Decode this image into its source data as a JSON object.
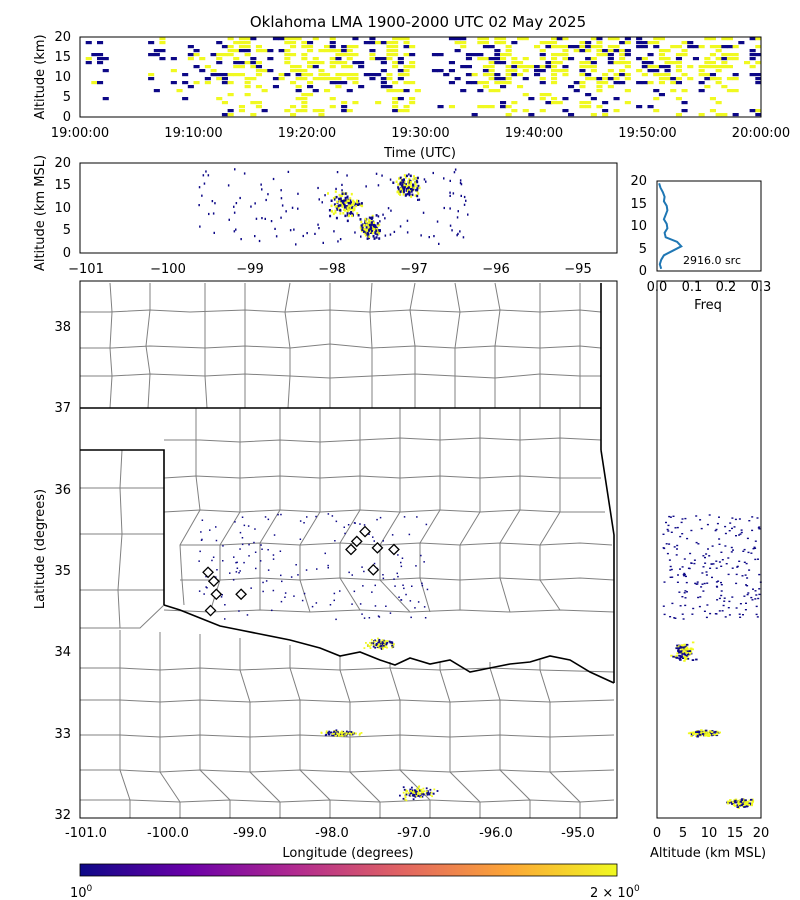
{
  "chart_data": [
    {
      "name": "time-altitude",
      "type": "heatmap",
      "title": "Oklahoma LMA 1900-2000 UTC 02 May 2025",
      "xlabel": "Time (UTC)",
      "ylabel": "Altitude (km)",
      "xticks": [
        "19:00:00",
        "19:10:00",
        "19:20:00",
        "19:30:00",
        "19:40:00",
        "19:50:00",
        "20:00:00"
      ],
      "yticks": [
        "0",
        "5",
        "10",
        "15",
        "20"
      ],
      "xlim_minutes": [
        0,
        60
      ],
      "ylim": [
        0,
        20
      ],
      "active_windows_minutes": [
        [
          0.2,
          2.0
        ],
        [
          6.0,
          7.0
        ],
        [
          8.0,
          21.0
        ],
        [
          21.5,
          29.5
        ],
        [
          31.0,
          60.0
        ]
      ],
      "dense_windows_minutes": [
        [
          13.0,
          16.0
        ],
        [
          18.0,
          24.0
        ],
        [
          27.0,
          29.0
        ],
        [
          35.0,
          39.0
        ],
        [
          40.5,
          42.5
        ],
        [
          44.0,
          48.0
        ],
        [
          50.0,
          53.0
        ],
        [
          54.5,
          57.5
        ]
      ],
      "colors": [
        "#0d0887",
        "#f0f921"
      ]
    },
    {
      "name": "longitude-altitude",
      "type": "scatter",
      "xlabel": "",
      "ylabel": "Altitude (km MSL)",
      "xticks": [
        "−101",
        "−100",
        "−99",
        "−98",
        "−97",
        "−96",
        "−95"
      ],
      "yticks": [
        "0",
        "5",
        "10",
        "15",
        "20"
      ],
      "xlim": [
        -101.0,
        -94.5
      ],
      "ylim": [
        0,
        20
      ],
      "dense_clusters": [
        {
          "lon": -97.05,
          "alt": 15.0,
          "spread_lon": 0.2,
          "spread_alt": 3.0
        },
        {
          "lon": -97.5,
          "alt": 6.0,
          "spread_lon": 0.18,
          "spread_alt": 3.0
        },
        {
          "lon": -97.8,
          "alt": 11.0,
          "spread_lon": 0.25,
          "spread_alt": 4.0
        }
      ]
    },
    {
      "name": "altitude-frequency",
      "type": "line",
      "xlabel": "Freq",
      "ylabel": "",
      "xticks": [
        "0.0",
        "0.1",
        "0.2",
        "0.3"
      ],
      "yticks": [
        "0",
        "5",
        "10",
        "15",
        "20"
      ],
      "xlim": [
        0,
        0.3
      ],
      "ylim": [
        0,
        20
      ],
      "annotation": "2916.0 src",
      "points": [
        [
          0.012,
          0.5
        ],
        [
          0.008,
          1.5
        ],
        [
          0.012,
          2.5
        ],
        [
          0.02,
          3.5
        ],
        [
          0.045,
          4.5
        ],
        [
          0.07,
          5.5
        ],
        [
          0.058,
          6.5
        ],
        [
          0.025,
          7.5
        ],
        [
          0.022,
          8.5
        ],
        [
          0.03,
          9.5
        ],
        [
          0.028,
          10.5
        ],
        [
          0.02,
          11.5
        ],
        [
          0.025,
          12.5
        ],
        [
          0.03,
          13.5
        ],
        [
          0.028,
          14.5
        ],
        [
          0.02,
          15.5
        ],
        [
          0.022,
          16.5
        ],
        [
          0.017,
          17.5
        ],
        [
          0.01,
          18.5
        ],
        [
          0.006,
          19.5
        ]
      ],
      "color": "#1f77b4"
    },
    {
      "name": "plan-view",
      "type": "scatter",
      "xlabel": "Longitude (degrees)",
      "ylabel": "Latitude (degrees)",
      "xticks": [
        "-101.0",
        "-100.0",
        "-99.0",
        "-98.0",
        "-97.0",
        "-96.0",
        "-95.0"
      ],
      "yticks": [
        "32",
        "33",
        "34",
        "35",
        "36",
        "37",
        "38"
      ],
      "xlim": [
        -101.0,
        -94.5
      ],
      "ylim": [
        31.95,
        38.55
      ],
      "stations": [
        [
          -97.55,
          35.47
        ],
        [
          -97.65,
          35.35
        ],
        [
          -97.72,
          35.25
        ],
        [
          -97.4,
          35.27
        ],
        [
          -97.2,
          35.25
        ],
        [
          -97.45,
          35.0
        ],
        [
          -99.45,
          34.97
        ],
        [
          -99.38,
          34.86
        ],
        [
          -99.35,
          34.7
        ],
        [
          -99.05,
          34.7
        ],
        [
          -99.42,
          34.5
        ]
      ],
      "dense_clusters": [
        {
          "lon": -97.35,
          "lat": 34.1,
          "spread_lon": 0.25,
          "spread_lat": 0.08
        },
        {
          "lon": -96.95,
          "lat": 32.27,
          "spread_lon": 0.3,
          "spread_lat": 0.1
        },
        {
          "lon": -97.85,
          "lat": 33.0,
          "spread_lon": 0.3,
          "spread_lat": 0.05
        }
      ]
    },
    {
      "name": "altitude-latitude",
      "type": "scatter",
      "xlabel": "Altitude (km MSL)",
      "ylabel": "",
      "xticks": [
        "0",
        "5",
        "10",
        "15",
        "20"
      ],
      "xlim": [
        0,
        20
      ],
      "ylim": [
        31.95,
        38.55
      ],
      "dense_clusters": [
        {
          "alt": 5.0,
          "lat": 34.0,
          "spread_alt": 3.0,
          "spread_lat": 0.15
        },
        {
          "alt": 16.0,
          "lat": 32.15,
          "spread_alt": 4.0,
          "spread_lat": 0.08
        },
        {
          "alt": 9.0,
          "lat": 33.0,
          "spread_alt": 4.0,
          "spread_lat": 0.05
        }
      ]
    }
  ],
  "colorbar": {
    "min_label_base": "10",
    "min_label_exp": "0",
    "max_label_base": "2 × 10",
    "max_label_exp": "0",
    "colormap": [
      "#0d0887",
      "#6a00a8",
      "#b12a90",
      "#e16462",
      "#fca636",
      "#f0f921"
    ]
  }
}
